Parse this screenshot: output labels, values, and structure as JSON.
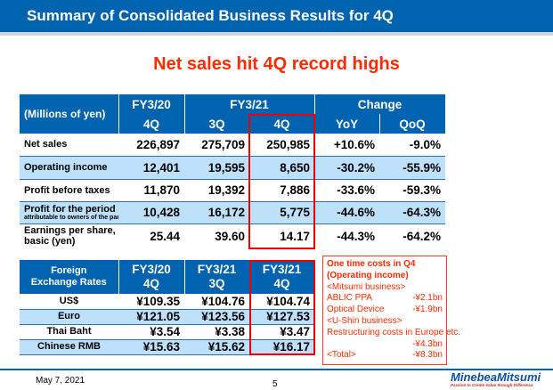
{
  "header": {
    "title": "Summary of Consolidated Business Results for 4Q"
  },
  "subtitle": "Net sales hit 4Q record highs",
  "results": {
    "unit": "(Millions of yen)",
    "groups": [
      "FY3/20",
      "FY3/21",
      "Change"
    ],
    "columns": [
      "4Q",
      "3Q",
      "4Q",
      "YoY",
      "QoQ"
    ],
    "rows": [
      {
        "label": "Net sales",
        "values": [
          "226,897",
          "275,709",
          "250,985",
          "+10.6%",
          "-9.0%"
        ]
      },
      {
        "label": "Operating income",
        "values": [
          "12,401",
          "19,595",
          "8,650",
          "-30.2%",
          "-55.9%"
        ]
      },
      {
        "label": "Profit before taxes",
        "values": [
          "11,870",
          "19,392",
          "7,886",
          "-33.6%",
          "-59.3%"
        ]
      },
      {
        "label": "Profit for the period",
        "sublabel": "attributable to owners of the parent",
        "values": [
          "10,428",
          "16,172",
          "5,775",
          "-44.6%",
          "-64.3%"
        ]
      },
      {
        "label": "Earnings per share,",
        "label2": "basic (yen)",
        "values": [
          "25.44",
          "39.60",
          "14.17",
          "-44.3%",
          "-64.2%"
        ]
      }
    ]
  },
  "fx": {
    "header1": "Foreign",
    "header2": "Exchange Rates",
    "columns": [
      [
        "FY3/20",
        "4Q"
      ],
      [
        "FY3/21",
        "3Q"
      ],
      [
        "FY3/21",
        "4Q"
      ]
    ],
    "rows": [
      {
        "label": "US$",
        "values": [
          "¥109.35",
          "¥104.76",
          "¥104.74"
        ]
      },
      {
        "label": "Euro",
        "values": [
          "¥121.05",
          "¥123.56",
          "¥127.53"
        ]
      },
      {
        "label": "Thai Baht",
        "values": [
          "¥3.54",
          "¥3.38",
          "¥3.47"
        ]
      },
      {
        "label": "Chinese RMB",
        "values": [
          "¥15.63",
          "¥15.62",
          "¥16.17"
        ]
      }
    ]
  },
  "note": {
    "title1": "One time costs in Q4",
    "title2": "(Operating income)",
    "mitsumi": "<Mitsumi business>",
    "ablic": "ABLIC PPA",
    "ablic_v": "-¥2.1bn",
    "optical": "Optical Device",
    "optical_v": "-¥1.9bn",
    "ushin": "<U-Shin business>",
    "restr": "Restructuring costs in Europe etc.",
    "restr_v": "-¥4.3bn",
    "total": "<Total>",
    "total_v": "-¥8.3bn"
  },
  "footer": {
    "date": "May 7, 2021",
    "page": "5",
    "logo": "MinebeaMitsumi",
    "tagline": "Passion to Create Value through Difference"
  },
  "colors": {
    "brand_blue": "#0063AF",
    "light_blue": "#BDE0FB",
    "accent_red": "#FF2A00"
  }
}
